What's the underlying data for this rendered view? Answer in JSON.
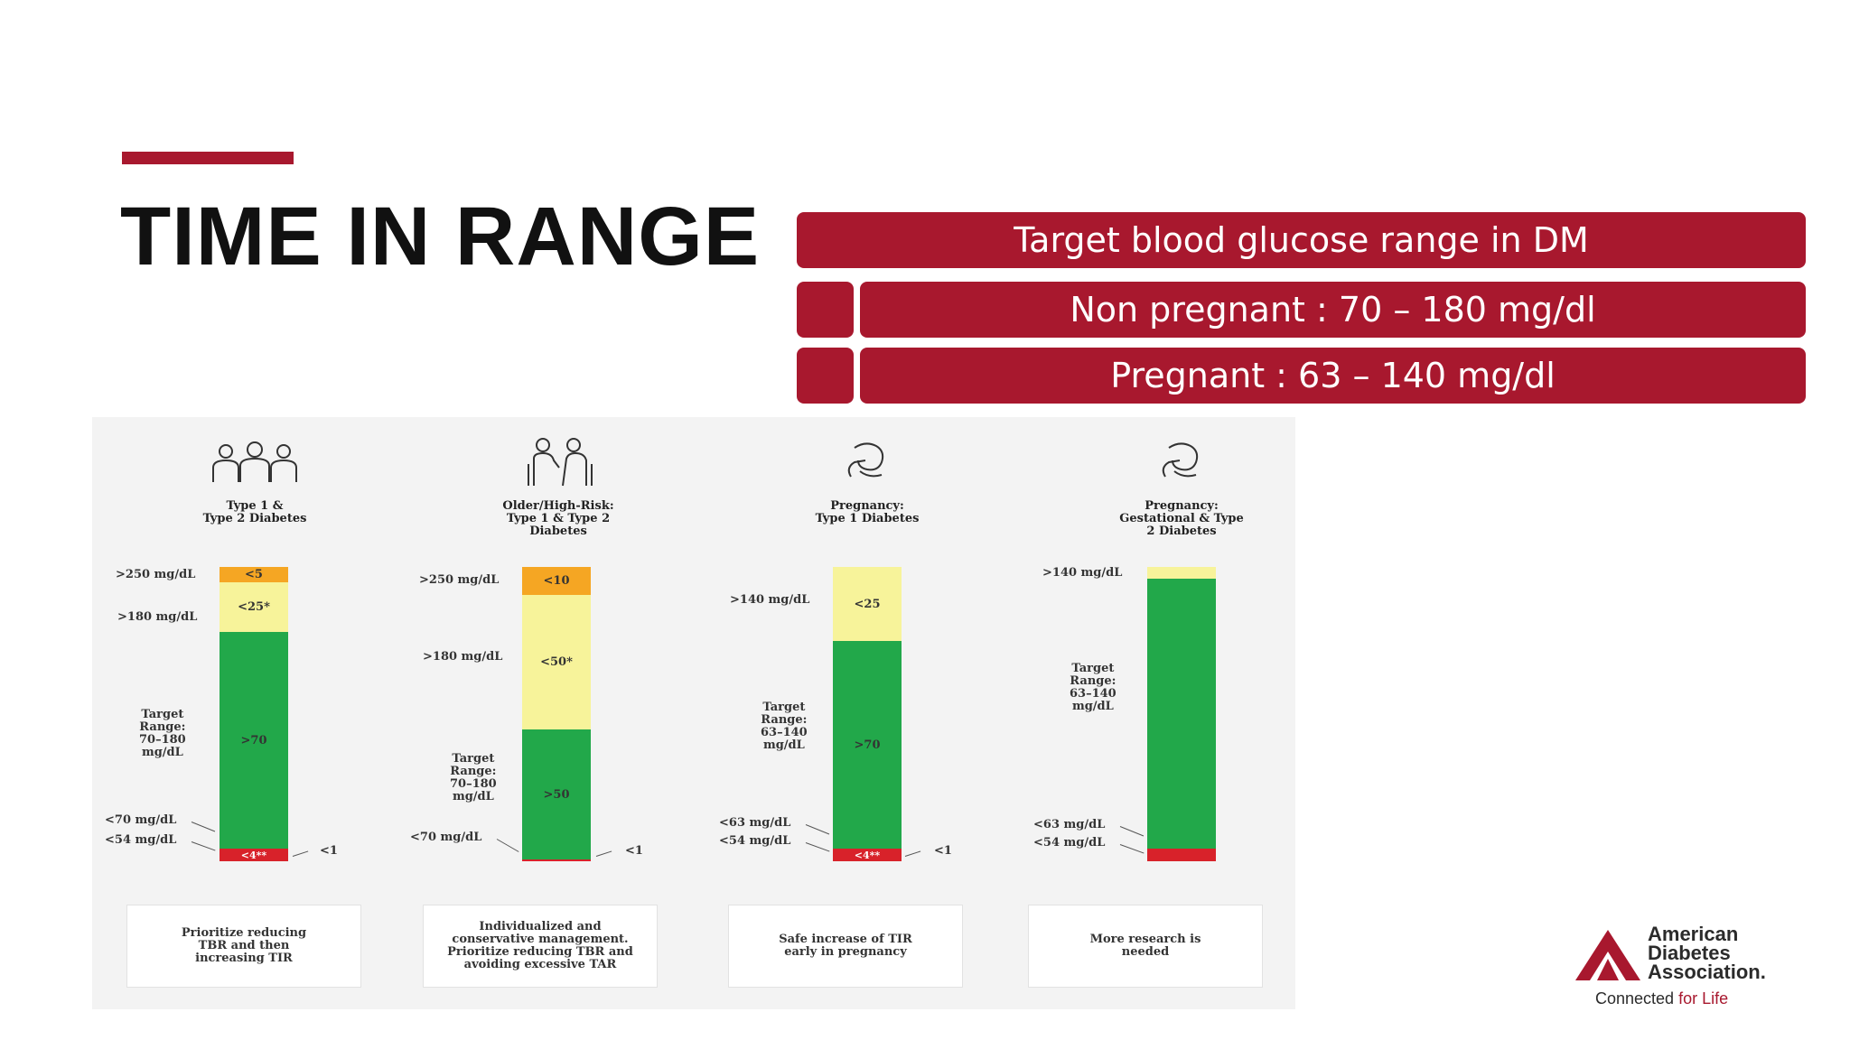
{
  "slide": {
    "title": "TIME IN RANGE",
    "accent_color": "#a8182e"
  },
  "target_box": {
    "header": "Target blood glucose range in DM",
    "rows": [
      {
        "label": "Non pregnant : 70 – 180 mg/dl"
      },
      {
        "label": "Pregnant : 63 – 140 mg/dl"
      }
    ]
  },
  "figure": {
    "colors": {
      "high": "#f5a623",
      "above": "#f7f39a",
      "target": "#22a84a",
      "below": "#d8222a",
      "very_low": "#d8222a"
    },
    "panels": [
      {
        "icon": "group-of-people-icon",
        "title": "Type 1 &\nType 2 Diabetes",
        "segments": [
          {
            "band": "high",
            "label": "<5"
          },
          {
            "band": "above",
            "label": "<25*"
          },
          {
            "band": "target",
            "label": ">70"
          },
          {
            "band": "below",
            "label": "<4**"
          }
        ],
        "side_labels": {
          "top": ">250 mg/dL",
          "upper": ">180 mg/dL",
          "target": "Target\nRange:\n70–180\nmg/dL",
          "low": "<70 mg/dL",
          "very_low": "<54 mg/dL",
          "right": "<1"
        },
        "note": "Prioritize reducing\nTBR and then\nincreasing TIR"
      },
      {
        "icon": "older-couple-icon",
        "title": "Older/High-Risk:\nType 1 & Type 2\nDiabetes",
        "segments": [
          {
            "band": "high",
            "label": "<10"
          },
          {
            "band": "above",
            "label": "<50*"
          },
          {
            "band": "target",
            "label": ">50"
          },
          {
            "band": "below",
            "label": ""
          }
        ],
        "side_labels": {
          "top": ">250 mg/dL",
          "upper": ">180 mg/dL",
          "target": "Target\nRange:\n70–180\nmg/dL",
          "low": "<70 mg/dL",
          "right": "<1"
        },
        "note": "Individualized and\nconservative management.\nPrioritize reducing TBR and\navoiding excessive TAR"
      },
      {
        "icon": "pregnant-woman-icon",
        "title": "Pregnancy:\nType 1 Diabetes",
        "segments": [
          {
            "band": "above",
            "label": "<25"
          },
          {
            "band": "target",
            "label": ">70"
          },
          {
            "band": "below",
            "label": "<4**"
          }
        ],
        "side_labels": {
          "upper": ">140 mg/dL",
          "target": "Target\nRange:\n63–140\nmg/dL",
          "low": "<63 mg/dL",
          "very_low": "<54 mg/dL",
          "right": "<1"
        },
        "note": "Safe increase of TIR\nearly in pregnancy"
      },
      {
        "icon": "pregnant-woman-icon",
        "title": "Pregnancy:\nGestational & Type\n2 Diabetes",
        "segments": [
          {
            "band": "above",
            "label": ""
          },
          {
            "band": "target",
            "label": ""
          },
          {
            "band": "below",
            "label": ""
          }
        ],
        "side_labels": {
          "upper": ">140 mg/dL",
          "target": "Target\nRange:\n63–140\nmg/dL",
          "low": "<63 mg/dL",
          "very_low": "<54 mg/dL"
        },
        "note": "More research is\nneeded"
      }
    ]
  },
  "logo": {
    "name": "American\nDiabetes\nAssociation.",
    "tagline_prefix": "Connected ",
    "tagline_accent": "for Life"
  }
}
